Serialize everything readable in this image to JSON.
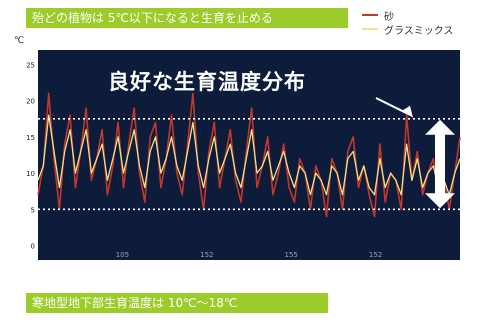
{
  "banner_top": "殆どの植物は 5℃以下になると生育を止める",
  "banner_bottom": "寒地型地下部生育温度は 10℃〜18℃",
  "colors": {
    "banner": "#9ccc2a",
    "plot_bg": "#0c1c3a",
    "sand": "#c0392b",
    "grass_mix": "#f2e08a",
    "arrow": "#ffffff"
  },
  "chart_data": {
    "type": "line",
    "title": "",
    "unit": "℃",
    "annotation": "良好な生育温度分布",
    "ylabel": "℃",
    "ylim": [
      -2,
      27
    ],
    "yticks": [
      0,
      5,
      10,
      15,
      20,
      25
    ],
    "xticks": [
      "105",
      "152",
      "155",
      "152"
    ],
    "reference_lines": [
      5,
      17.5
    ],
    "band": [
      5,
      17.5
    ],
    "legend_position": "top-right",
    "grid": false,
    "series": [
      {
        "name": "砂",
        "values": [
          7,
          11,
          21,
          12,
          5,
          14,
          18,
          8,
          13,
          19,
          9,
          12,
          16,
          7,
          11,
          17,
          8,
          14,
          19,
          10,
          6,
          15,
          17,
          8,
          12,
          18,
          10,
          7,
          14,
          21,
          10,
          5,
          13,
          17,
          8,
          12,
          16,
          9,
          6,
          13,
          19,
          8,
          11,
          15,
          7,
          10,
          14,
          8,
          6,
          12,
          10,
          5,
          11,
          9,
          4,
          12,
          10,
          5,
          13,
          15,
          8,
          11,
          7,
          4,
          14,
          6,
          10,
          9,
          5,
          18,
          9,
          13,
          7,
          10,
          12,
          6,
          9,
          5,
          10,
          15
        ]
      },
      {
        "name": "グラスミックス",
        "values": [
          9,
          11,
          18,
          13,
          8,
          13,
          16,
          10,
          13,
          16,
          10,
          12,
          14,
          9,
          12,
          15,
          10,
          13,
          16,
          11,
          8,
          13,
          15,
          10,
          12,
          15,
          11,
          9,
          13,
          17,
          11,
          8,
          12,
          15,
          10,
          12,
          14,
          10,
          8,
          12,
          16,
          10,
          11,
          13,
          9,
          11,
          13,
          10,
          8,
          11,
          10,
          7,
          10,
          9,
          7,
          11,
          10,
          7,
          12,
          13,
          9,
          11,
          8,
          7,
          12,
          8,
          10,
          9,
          7,
          14,
          9,
          12,
          8,
          10,
          11,
          8,
          9,
          7,
          10,
          12
        ]
      }
    ]
  }
}
